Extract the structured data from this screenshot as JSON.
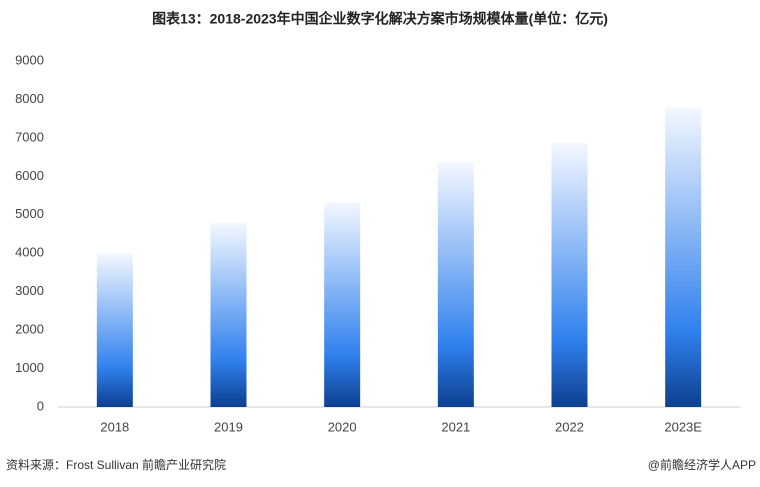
{
  "chart_data": {
    "type": "bar",
    "title": "图表13：2018-2023年中国企业数字化解决方案市场规模体量(单位：亿元)",
    "categories": [
      "2018",
      "2019",
      "2020",
      "2021",
      "2022",
      "2023E"
    ],
    "values": [
      4000,
      4790,
      5330,
      6370,
      6870,
      7800
    ],
    "color": "#2f80ed",
    "ylim": [
      0,
      9000
    ],
    "yticks": [
      0,
      1000,
      2000,
      3000,
      4000,
      5000,
      6000,
      7000,
      8000,
      9000
    ],
    "grid": false,
    "source": "资料来源：Frost Sullivan 前瞻产业研究院",
    "credit": "@前瞻经济学人APP"
  }
}
